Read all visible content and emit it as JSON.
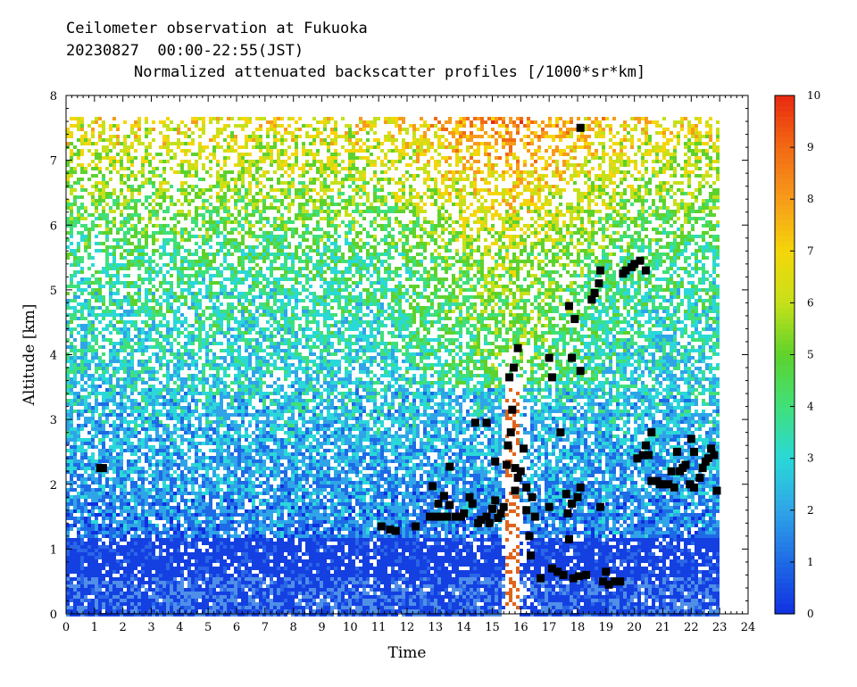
{
  "header": {
    "title_line1": "Ceilometer observation at Fukuoka",
    "title_line2": "20230827  00:00-22:55(JST)",
    "title_line3": "Normalized attenuated backscatter profiles [/1000*sr*km]"
  },
  "chart_data": {
    "type": "heatmap",
    "title": "Normalized attenuated backscatter profiles [/1000*sr*km]",
    "xlabel": "Time",
    "ylabel": "Altitude [km]",
    "xlim": [
      0,
      24
    ],
    "ylim": [
      0,
      8
    ],
    "x_ticks": [
      "0",
      "1",
      "2",
      "3",
      "4",
      "5",
      "6",
      "7",
      "8",
      "9",
      "10",
      "11",
      "12",
      "13",
      "14",
      "15",
      "16",
      "17",
      "18",
      "19",
      "20",
      "21",
      "22",
      "23",
      "24"
    ],
    "y_ticks": [
      "0",
      "1",
      "2",
      "3",
      "4",
      "5",
      "6",
      "7",
      "8"
    ],
    "data_extent": {
      "time_end": 22.92,
      "altitude_top": 7.67
    },
    "colorbar": {
      "range": [
        0,
        10
      ],
      "ticks": [
        "0",
        "1",
        "2",
        "3",
        "4",
        "5",
        "6",
        "7",
        "8",
        "9",
        "10"
      ],
      "colors": [
        "#1030e0",
        "#1e6ae6",
        "#2fa4e8",
        "#2ad8d8",
        "#3fe07a",
        "#5ed22c",
        "#c6e01a",
        "#f4d60a",
        "#f79b1a",
        "#f26a14",
        "#e82a10"
      ]
    },
    "series": [
      {
        "name": "",
        "type": "scatter",
        "marker": "square",
        "color": "#000000",
        "points": [
          [
            1.2,
            2.25
          ],
          [
            1.3,
            2.25
          ],
          [
            11.1,
            1.35
          ],
          [
            11.4,
            1.3
          ],
          [
            11.6,
            1.28
          ],
          [
            12.3,
            1.35
          ],
          [
            12.8,
            1.5
          ],
          [
            12.9,
            1.97
          ],
          [
            13.0,
            1.5
          ],
          [
            13.1,
            1.7
          ],
          [
            13.2,
            1.5
          ],
          [
            13.3,
            1.82
          ],
          [
            13.4,
            1.5
          ],
          [
            13.5,
            1.68
          ],
          [
            13.5,
            2.27
          ],
          [
            13.7,
            1.5
          ],
          [
            13.9,
            1.5
          ],
          [
            14.0,
            1.55
          ],
          [
            14.2,
            1.8
          ],
          [
            14.3,
            1.7
          ],
          [
            14.4,
            2.95
          ],
          [
            14.5,
            1.4
          ],
          [
            14.6,
            1.45
          ],
          [
            14.8,
            2.95
          ],
          [
            14.8,
            1.5
          ],
          [
            14.9,
            1.4
          ],
          [
            15.0,
            1.62
          ],
          [
            15.1,
            1.75
          ],
          [
            15.1,
            2.35
          ],
          [
            15.2,
            1.48
          ],
          [
            15.3,
            1.55
          ],
          [
            15.4,
            1.65
          ],
          [
            15.5,
            2.3
          ],
          [
            15.55,
            2.6
          ],
          [
            15.6,
            3.65
          ],
          [
            15.65,
            2.8
          ],
          [
            15.7,
            3.15
          ],
          [
            15.75,
            3.8
          ],
          [
            15.8,
            2.25
          ],
          [
            15.8,
            1.9
          ],
          [
            15.9,
            4.1
          ],
          [
            15.9,
            2.1
          ],
          [
            16.0,
            2.2
          ],
          [
            16.1,
            2.55
          ],
          [
            16.2,
            1.6
          ],
          [
            16.2,
            1.95
          ],
          [
            16.3,
            1.2
          ],
          [
            16.35,
            0.9
          ],
          [
            16.4,
            1.8
          ],
          [
            16.5,
            1.5
          ],
          [
            16.7,
            0.55
          ],
          [
            17.0,
            1.65
          ],
          [
            17.0,
            3.95
          ],
          [
            17.1,
            0.7
          ],
          [
            17.1,
            3.65
          ],
          [
            17.3,
            0.65
          ],
          [
            17.4,
            2.8
          ],
          [
            17.5,
            0.6
          ],
          [
            17.6,
            1.85
          ],
          [
            17.65,
            1.55
          ],
          [
            17.7,
            1.15
          ],
          [
            17.7,
            4.75
          ],
          [
            17.8,
            3.95
          ],
          [
            17.8,
            1.7
          ],
          [
            17.85,
            0.55
          ],
          [
            17.9,
            4.55
          ],
          [
            18.0,
            1.8
          ],
          [
            18.05,
            0.58
          ],
          [
            18.1,
            1.95
          ],
          [
            18.1,
            3.75
          ],
          [
            18.1,
            7.5
          ],
          [
            18.3,
            0.6
          ],
          [
            18.5,
            4.85
          ],
          [
            18.6,
            4.95
          ],
          [
            18.75,
            5.1
          ],
          [
            18.8,
            5.3
          ],
          [
            18.8,
            1.65
          ],
          [
            18.9,
            0.5
          ],
          [
            19.0,
            0.65
          ],
          [
            19.1,
            0.45
          ],
          [
            19.3,
            0.5
          ],
          [
            19.5,
            0.5
          ],
          [
            19.6,
            5.25
          ],
          [
            19.7,
            5.3
          ],
          [
            19.9,
            5.35
          ],
          [
            20.0,
            5.4
          ],
          [
            20.1,
            2.4
          ],
          [
            20.2,
            5.45
          ],
          [
            20.3,
            2.45
          ],
          [
            20.4,
            2.6
          ],
          [
            20.4,
            5.3
          ],
          [
            20.5,
            2.45
          ],
          [
            20.6,
            2.8
          ],
          [
            20.6,
            2.05
          ],
          [
            20.8,
            2.05
          ],
          [
            20.9,
            2.0
          ],
          [
            21.0,
            2.0
          ],
          [
            21.2,
            2.0
          ],
          [
            21.3,
            2.2
          ],
          [
            21.4,
            1.95
          ],
          [
            21.5,
            2.5
          ],
          [
            21.6,
            2.2
          ],
          [
            21.7,
            2.25
          ],
          [
            21.8,
            2.3
          ],
          [
            21.95,
            2.0
          ],
          [
            22.0,
            2.7
          ],
          [
            22.1,
            2.5
          ],
          [
            22.1,
            1.95
          ],
          [
            22.3,
            2.1
          ],
          [
            22.4,
            2.25
          ],
          [
            22.5,
            2.35
          ],
          [
            22.6,
            2.4
          ],
          [
            22.7,
            2.55
          ],
          [
            22.8,
            2.45
          ],
          [
            22.9,
            1.9
          ]
        ]
      }
    ]
  }
}
